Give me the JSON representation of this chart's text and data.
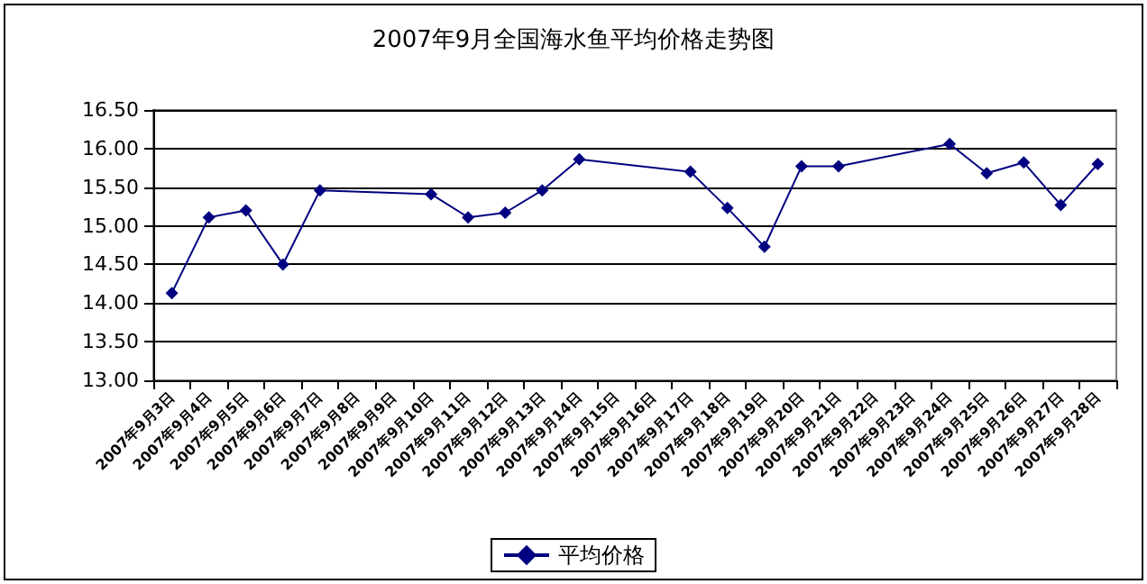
{
  "chart_data": {
    "type": "line",
    "title": "2007年9月全国海水鱼平均价格走势图",
    "categories": [
      "2007年9月3日",
      "2007年9月4日",
      "2007年9月5日",
      "2007年9月6日",
      "2007年9月7日",
      "2007年9月8日",
      "2007年9月9日",
      "2007年9月10日",
      "2007年9月11日",
      "2007年9月12日",
      "2007年9月13日",
      "2007年9月14日",
      "2007年9月15日",
      "2007年9月16日",
      "2007年9月17日",
      "2007年9月18日",
      "2007年9月19日",
      "2007年9月20日",
      "2007年9月21日",
      "2007年9月22日",
      "2007年9月23日",
      "2007年9月24日",
      "2007年9月25日",
      "2007年9月26日",
      "2007年9月27日",
      "2007年9月28日"
    ],
    "series": [
      {
        "name": "平均价格",
        "color": "#000080",
        "values": [
          14.13,
          15.11,
          15.2,
          14.5,
          15.46,
          null,
          null,
          15.41,
          15.11,
          15.17,
          15.46,
          15.86,
          null,
          null,
          15.7,
          15.23,
          14.73,
          15.77,
          15.77,
          null,
          null,
          16.06,
          15.68,
          15.82,
          15.27,
          15.8
        ]
      }
    ],
    "ylim": [
      13,
      16.5
    ],
    "yticks": [
      {
        "value": 13,
        "label": "13.00"
      },
      {
        "value": 13.5,
        "label": "13.50"
      },
      {
        "value": 14,
        "label": "14.00"
      },
      {
        "value": 14.5,
        "label": "14.50"
      },
      {
        "value": 15,
        "label": "15.00"
      },
      {
        "value": 15.5,
        "label": "15.50"
      },
      {
        "value": 16,
        "label": "16.00"
      },
      {
        "value": 16.5,
        "label": "16.50"
      }
    ],
    "grid": "y",
    "legend": "bottom",
    "marker": "diamond",
    "line_style": "solid"
  }
}
